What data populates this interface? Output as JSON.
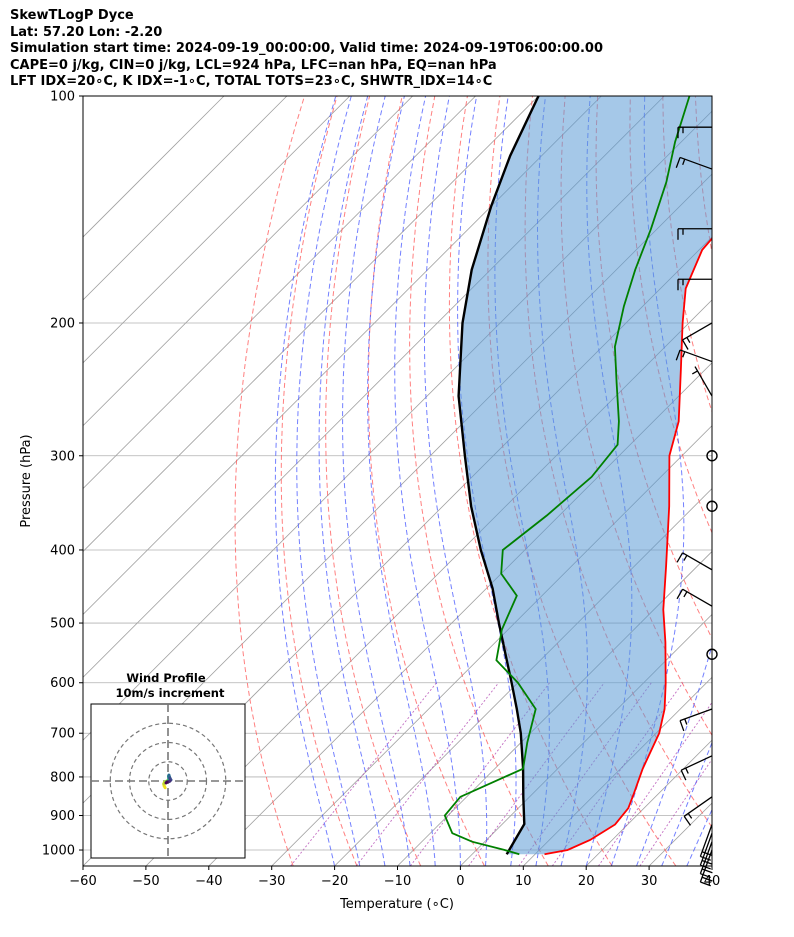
{
  "header": {
    "line1": "SkewTLogP Dyce",
    "line2": "Lat: 57.20   Lon: -2.20",
    "line3": "Simulation start time: 2024-09-19_00:00:00, Valid time: 2024-09-19T06:00:00.00",
    "line4": "CAPE=0 j/kg, CIN=0 j/kg, LCL=924 hPa, LFC=nan hPa, EQ=nan hPa",
    "line5": "LFT IDX=20∘C, K IDX=-1∘C, TOTAL TOTS=23∘C, SHWTR_IDX=14∘C"
  },
  "chart_data": {
    "type": "skew-t log-p",
    "xlabel": "Temperature (∘C)",
    "ylabel": "Pressure (hPa)",
    "xlim": [
      -60,
      40
    ],
    "ylim": [
      1050,
      100
    ],
    "y_scale": "log",
    "grid": true,
    "x_ticks": [
      -60,
      -50,
      -40,
      -30,
      -20,
      -10,
      0,
      10,
      20,
      30,
      40
    ],
    "y_ticks": [
      100,
      200,
      300,
      400,
      500,
      600,
      700,
      800,
      900,
      1000
    ],
    "temperature": {
      "color": "#ff0000",
      "points": [
        [
          1013,
          11.5
        ],
        [
          1000,
          14.5
        ],
        [
          970,
          16.5
        ],
        [
          925,
          18.0
        ],
        [
          880,
          17.5
        ],
        [
          840,
          16.0
        ],
        [
          780,
          13.5
        ],
        [
          700,
          10.5
        ],
        [
          650,
          7.5
        ],
        [
          600,
          3.5
        ],
        [
          530,
          -3.0
        ],
        [
          480,
          -8.5
        ],
        [
          420,
          -15.0
        ],
        [
          350,
          -24.0
        ],
        [
          300,
          -32.0
        ],
        [
          270,
          -36.0
        ],
        [
          230,
          -44.0
        ],
        [
          200,
          -51.0
        ],
        [
          180,
          -56.0
        ],
        [
          160,
          -59.5
        ],
        [
          140,
          -60.5
        ],
        [
          120,
          -60.0
        ],
        [
          100,
          -60.0
        ]
      ]
    },
    "dewpoint": {
      "color": "#008000",
      "points": [
        [
          1013,
          7.5
        ],
        [
          1000,
          4.5
        ],
        [
          975,
          -2.0
        ],
        [
          950,
          -6.5
        ],
        [
          900,
          -10.5
        ],
        [
          850,
          -11.0
        ],
        [
          780,
          -5.5
        ],
        [
          720,
          -9.0
        ],
        [
          650,
          -13.0
        ],
        [
          600,
          -20.0
        ],
        [
          560,
          -27.0
        ],
        [
          510,
          -31.0
        ],
        [
          460,
          -34.0
        ],
        [
          430,
          -40.0
        ],
        [
          400,
          -43.5
        ],
        [
          360,
          -42.0
        ],
        [
          320,
          -41.0
        ],
        [
          290,
          -42.0
        ],
        [
          270,
          -45.5
        ],
        [
          240,
          -52.0
        ],
        [
          215,
          -58.0
        ],
        [
          190,
          -63.0
        ],
        [
          170,
          -67.0
        ],
        [
          150,
          -71.0
        ],
        [
          130,
          -76.0
        ],
        [
          115,
          -81.0
        ],
        [
          100,
          -86.0
        ]
      ]
    },
    "parcel": {
      "color": "#000000",
      "points": [
        [
          1013,
          5.5
        ],
        [
          924,
          3.5
        ],
        [
          850,
          -1.0
        ],
        [
          780,
          -5.5
        ],
        [
          700,
          -11.5
        ],
        [
          650,
          -16.0
        ],
        [
          600,
          -21.0
        ],
        [
          550,
          -26.5
        ],
        [
          500,
          -32.5
        ],
        [
          450,
          -39.0
        ],
        [
          400,
          -47.0
        ],
        [
          350,
          -55.5
        ],
        [
          300,
          -64.5
        ],
        [
          250,
          -75.0
        ],
        [
          200,
          -86.0
        ],
        [
          170,
          -93.0
        ],
        [
          140,
          -100.0
        ],
        [
          120,
          -105.0
        ],
        [
          100,
          -110.0
        ]
      ]
    },
    "shaded_area": {
      "between": [
        "parcel",
        "temperature"
      ],
      "color": "#5b9bd5"
    },
    "background_lines": {
      "isotherms_color": "#a0a0a0",
      "dry_adiabats_color": "#ff5555",
      "moist_adiabats_color": "#4455ff",
      "mixing_ratio_color": "#aa33aa"
    },
    "wind_barbs": [
      {
        "p": 1000,
        "speed_kt": 20,
        "dir": 340
      },
      {
        "p": 975,
        "speed_kt": 20,
        "dir": 340
      },
      {
        "p": 950,
        "speed_kt": 20,
        "dir": 340
      },
      {
        "p": 925,
        "speed_kt": 20,
        "dir": 340
      },
      {
        "p": 850,
        "speed_kt": 15,
        "dir": 305
      },
      {
        "p": 750,
        "speed_kt": 15,
        "dir": 295
      },
      {
        "p": 650,
        "speed_kt": 15,
        "dir": 290
      },
      {
        "p": 550,
        "speed_kt": 0,
        "dir": 0
      },
      {
        "p": 475,
        "speed_kt": 15,
        "dir": 240
      },
      {
        "p": 425,
        "speed_kt": 15,
        "dir": 240
      },
      {
        "p": 350,
        "speed_kt": 0,
        "dir": 0
      },
      {
        "p": 300,
        "speed_kt": 0,
        "dir": 0
      },
      {
        "p": 250,
        "speed_kt": 5,
        "dir": 210
      },
      {
        "p": 225,
        "speed_kt": 15,
        "dir": 250
      },
      {
        "p": 200,
        "speed_kt": 15,
        "dir": 300
      },
      {
        "p": 175,
        "speed_kt": 15,
        "dir": 270
      },
      {
        "p": 150,
        "speed_kt": 15,
        "dir": 270
      },
      {
        "p": 125,
        "speed_kt": 15,
        "dir": 250
      },
      {
        "p": 110,
        "speed_kt": 15,
        "dir": 270
      }
    ],
    "hodograph": {
      "title": "Wind Profile",
      "subtitle": "10m/s increment",
      "rings_ms": [
        10,
        20,
        30
      ],
      "axis_max_ms": 30,
      "trace_uv": [
        [
          -1.5,
          -3.5
        ],
        [
          -2.0,
          -2.5
        ],
        [
          -2.2,
          -1.5
        ],
        [
          -1.8,
          -0.5
        ],
        [
          -1.0,
          -0.2
        ],
        [
          -0.5,
          0.0
        ],
        [
          0.2,
          0.3
        ],
        [
          0.8,
          0.5
        ],
        [
          1.0,
          1.0
        ],
        [
          0.5,
          1.5
        ],
        [
          0.3,
          2.5
        ],
        [
          0.5,
          3.0
        ],
        [
          1.0,
          1.5
        ],
        [
          1.5,
          0.6
        ],
        [
          1.0,
          0.0
        ],
        [
          0.5,
          -0.3
        ],
        [
          -0.5,
          -0.5
        ],
        [
          -1.0,
          -1.0
        ]
      ]
    }
  }
}
